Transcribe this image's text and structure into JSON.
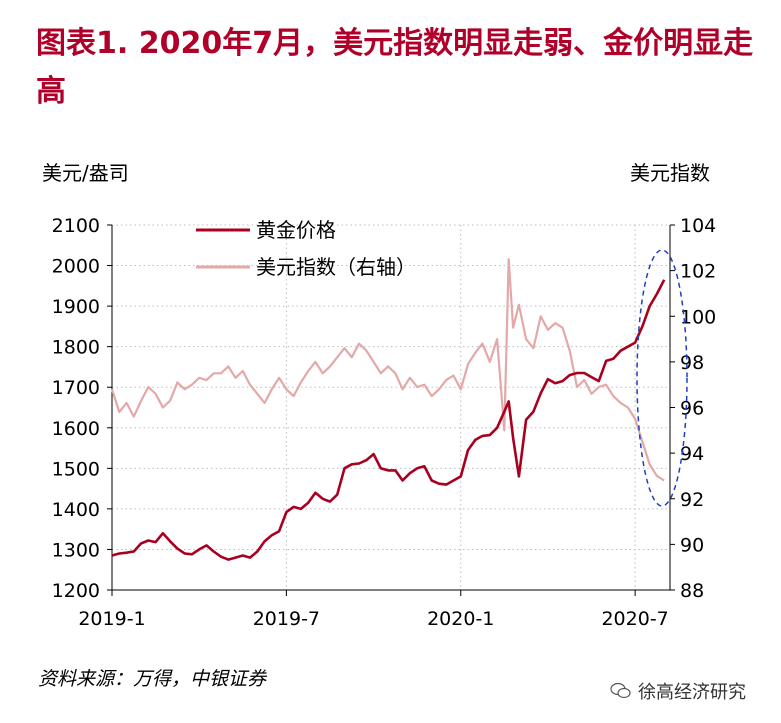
{
  "title": "图表1. 2020年7月，美元指数明显走弱、金价明显走高",
  "source": "资料来源：万得，中银证券",
  "watermark": "徐高经济研究",
  "colors": {
    "gold": "#a8001f",
    "dxy": "#e3a8a8",
    "title": "#b0002a",
    "ellipse": "#1f3fc0"
  },
  "chart_data": {
    "type": "line",
    "left_unit": "美元/盎司",
    "right_unit": "美元指数",
    "left_ticks": [
      "2100",
      "2000",
      "1900",
      "1800",
      "1700",
      "1600",
      "1500",
      "1400",
      "1300",
      "1200"
    ],
    "right_ticks": [
      "104",
      "102",
      "100",
      "98",
      "96",
      "94",
      "92",
      "90",
      "88"
    ],
    "x_ticks": [
      "2019-1",
      "2019-7",
      "2020-1",
      "2020-7"
    ],
    "ylim_left": [
      1200,
      2100
    ],
    "ylim_right": [
      88,
      104
    ],
    "x_month_range": [
      0,
      19.2
    ],
    "grid": true,
    "legend_placement": "top-left",
    "series": [
      {
        "name": "黄金价格",
        "axis": "left",
        "color": "#a8001f",
        "x_months": [
          0,
          0.25,
          0.5,
          0.75,
          1,
          1.25,
          1.5,
          1.75,
          2,
          2.25,
          2.5,
          2.75,
          3,
          3.25,
          3.5,
          3.75,
          4,
          4.25,
          4.5,
          4.75,
          5,
          5.25,
          5.5,
          5.75,
          6,
          6.25,
          6.5,
          6.75,
          7,
          7.25,
          7.5,
          7.75,
          8,
          8.25,
          8.5,
          8.75,
          9,
          9.25,
          9.5,
          9.75,
          10,
          10.25,
          10.5,
          10.75,
          11,
          11.25,
          11.5,
          11.75,
          12,
          12.25,
          12.5,
          12.75,
          13,
          13.25,
          13.5,
          13.65,
          13.8,
          14,
          14.25,
          14.5,
          14.75,
          15,
          15.25,
          15.5,
          15.75,
          16,
          16.25,
          16.5,
          16.75,
          17,
          17.25,
          17.5,
          17.75,
          18,
          18.25,
          18.5,
          18.75,
          19
        ],
        "values": [
          1285,
          1290,
          1292,
          1295,
          1315,
          1322,
          1318,
          1340,
          1320,
          1302,
          1290,
          1288,
          1300,
          1310,
          1295,
          1282,
          1275,
          1280,
          1285,
          1280,
          1295,
          1320,
          1335,
          1345,
          1392,
          1405,
          1400,
          1415,
          1440,
          1425,
          1418,
          1435,
          1500,
          1510,
          1512,
          1520,
          1535,
          1500,
          1495,
          1495,
          1470,
          1488,
          1500,
          1505,
          1470,
          1462,
          1460,
          1470,
          1480,
          1545,
          1570,
          1580,
          1582,
          1600,
          1640,
          1665,
          1575,
          1480,
          1620,
          1640,
          1685,
          1720,
          1710,
          1715,
          1730,
          1735,
          1735,
          1725,
          1715,
          1765,
          1770,
          1790,
          1800,
          1810,
          1850,
          1900,
          1930,
          1965
        ]
      },
      {
        "name": "美元指数（右轴）",
        "axis": "right",
        "color": "#e3a8a8",
        "x_months": [
          0,
          0.25,
          0.5,
          0.75,
          1,
          1.25,
          1.5,
          1.75,
          2,
          2.25,
          2.5,
          2.75,
          3,
          3.25,
          3.5,
          3.75,
          4,
          4.25,
          4.5,
          4.75,
          5,
          5.25,
          5.5,
          5.75,
          6,
          6.25,
          6.5,
          6.75,
          7,
          7.25,
          7.5,
          7.75,
          8,
          8.25,
          8.5,
          8.75,
          9,
          9.25,
          9.5,
          9.75,
          10,
          10.25,
          10.5,
          10.75,
          11,
          11.25,
          11.5,
          11.75,
          12,
          12.25,
          12.5,
          12.75,
          13,
          13.25,
          13.5,
          13.65,
          13.8,
          14,
          14.25,
          14.5,
          14.75,
          15,
          15.25,
          15.5,
          15.75,
          16,
          16.25,
          16.5,
          16.75,
          17,
          17.25,
          17.5,
          17.75,
          18,
          18.25,
          18.5,
          18.75,
          19
        ],
        "values": [
          96.8,
          95.8,
          96.2,
          95.6,
          96.3,
          96.9,
          96.6,
          96.0,
          96.3,
          97.1,
          96.8,
          97.0,
          97.3,
          97.2,
          97.5,
          97.5,
          97.8,
          97.3,
          97.6,
          97.0,
          96.6,
          96.2,
          96.8,
          97.3,
          96.8,
          96.5,
          97.1,
          97.6,
          98.0,
          97.5,
          97.8,
          98.2,
          98.6,
          98.2,
          98.8,
          98.5,
          98.0,
          97.5,
          97.8,
          97.5,
          96.8,
          97.3,
          96.9,
          97.0,
          96.5,
          96.8,
          97.2,
          97.4,
          96.8,
          97.9,
          98.4,
          98.8,
          98.0,
          99.0,
          95.0,
          102.5,
          99.5,
          100.5,
          99.0,
          98.6,
          100.0,
          99.4,
          99.7,
          99.5,
          98.5,
          96.9,
          97.2,
          96.6,
          96.9,
          97.0,
          96.5,
          96.2,
          96.0,
          95.5,
          94.5,
          93.5,
          93.0,
          92.8
        ]
      }
    ]
  }
}
